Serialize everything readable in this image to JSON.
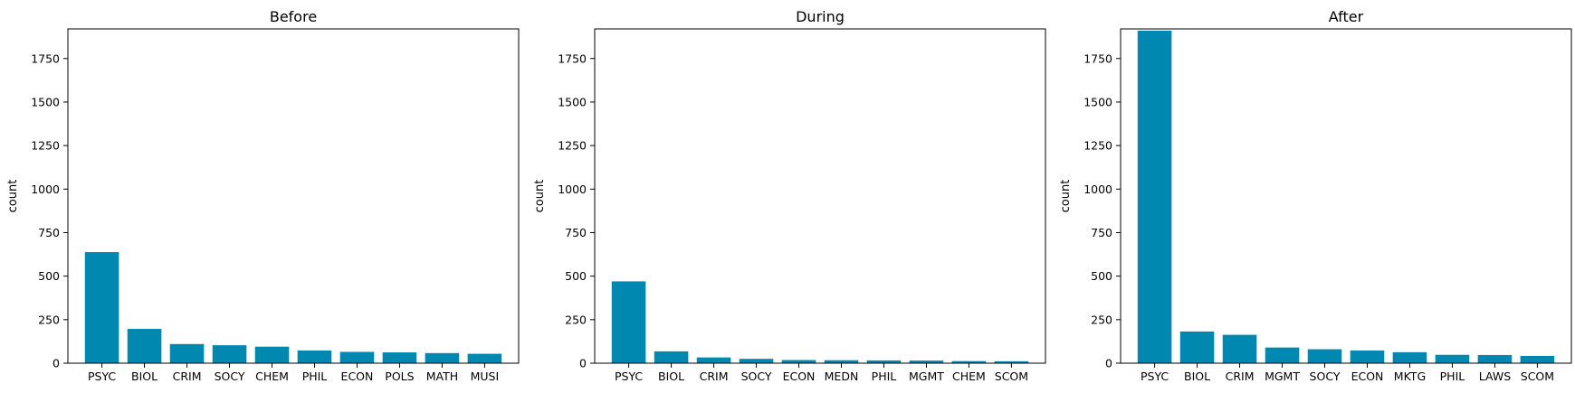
{
  "chart_data": [
    {
      "type": "bar",
      "title": "Before",
      "xlabel": "",
      "ylabel": "count",
      "ylim": [
        0,
        1920
      ],
      "yticks": [
        0,
        250,
        500,
        750,
        1000,
        1250,
        1500,
        1750
      ],
      "categories": [
        "PSYC",
        "BIOL",
        "CRIM",
        "SOCY",
        "CHEM",
        "PHIL",
        "ECON",
        "POLS",
        "MATH",
        "MUSI"
      ],
      "values": [
        638,
        197,
        110,
        103,
        95,
        73,
        65,
        62,
        58,
        54
      ],
      "color": "#0088b0",
      "grid": false
    },
    {
      "type": "bar",
      "title": "During",
      "xlabel": "",
      "ylabel": "count",
      "ylim": [
        0,
        1920
      ],
      "yticks": [
        0,
        250,
        500,
        750,
        1000,
        1250,
        1500,
        1750
      ],
      "categories": [
        "PSYC",
        "BIOL",
        "CRIM",
        "SOCY",
        "ECON",
        "MEDN",
        "PHIL",
        "MGMT",
        "CHEM",
        "SCOM"
      ],
      "values": [
        470,
        68,
        33,
        25,
        18,
        17,
        16,
        15,
        12,
        11
      ],
      "color": "#0088b0",
      "grid": false
    },
    {
      "type": "bar",
      "title": "After",
      "xlabel": "",
      "ylabel": "count",
      "ylim": [
        0,
        1920
      ],
      "yticks": [
        0,
        250,
        500,
        750,
        1000,
        1250,
        1500,
        1750
      ],
      "categories": [
        "PSYC",
        "BIOL",
        "CRIM",
        "MGMT",
        "SOCY",
        "ECON",
        "MKTG",
        "PHIL",
        "LAWS",
        "SCOM"
      ],
      "values": [
        1910,
        182,
        163,
        90,
        80,
        73,
        63,
        48,
        47,
        42
      ],
      "color": "#0088b0",
      "grid": false
    }
  ]
}
